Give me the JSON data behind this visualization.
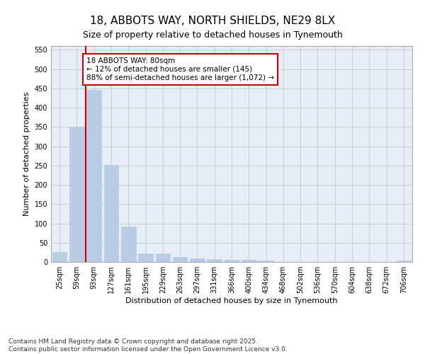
{
  "title": "18, ABBOTS WAY, NORTH SHIELDS, NE29 8LX",
  "subtitle": "Size of property relative to detached houses in Tynemouth",
  "xlabel": "Distribution of detached houses by size in Tynemouth",
  "ylabel": "Number of detached properties",
  "categories": [
    "25sqm",
    "59sqm",
    "93sqm",
    "127sqm",
    "161sqm",
    "195sqm",
    "229sqm",
    "263sqm",
    "297sqm",
    "331sqm",
    "366sqm",
    "400sqm",
    "434sqm",
    "468sqm",
    "502sqm",
    "536sqm",
    "570sqm",
    "604sqm",
    "638sqm",
    "672sqm",
    "706sqm"
  ],
  "values": [
    25,
    350,
    447,
    252,
    92,
    22,
    22,
    12,
    10,
    7,
    5,
    5,
    3,
    0,
    0,
    0,
    0,
    0,
    0,
    0,
    3
  ],
  "bar_color": "#b8cce4",
  "bar_edge_color": "#b8cce4",
  "redline_x": 1.5,
  "annotation_text": "18 ABBOTS WAY: 80sqm\n← 12% of detached houses are smaller (145)\n88% of semi-detached houses are larger (1,072) →",
  "annotation_box_color": "#ffffff",
  "annotation_box_edge": "#cc0000",
  "vline_color": "#cc0000",
  "ylim": [
    0,
    560
  ],
  "yticks": [
    0,
    50,
    100,
    150,
    200,
    250,
    300,
    350,
    400,
    450,
    500,
    550
  ],
  "grid_color": "#cccccc",
  "bg_color": "#e8eef7",
  "footer": "Contains HM Land Registry data © Crown copyright and database right 2025.\nContains public sector information licensed under the Open Government Licence v3.0.",
  "title_fontsize": 11,
  "subtitle_fontsize": 9,
  "axis_label_fontsize": 8,
  "tick_fontsize": 7,
  "annotation_fontsize": 7.5,
  "footer_fontsize": 6.5
}
